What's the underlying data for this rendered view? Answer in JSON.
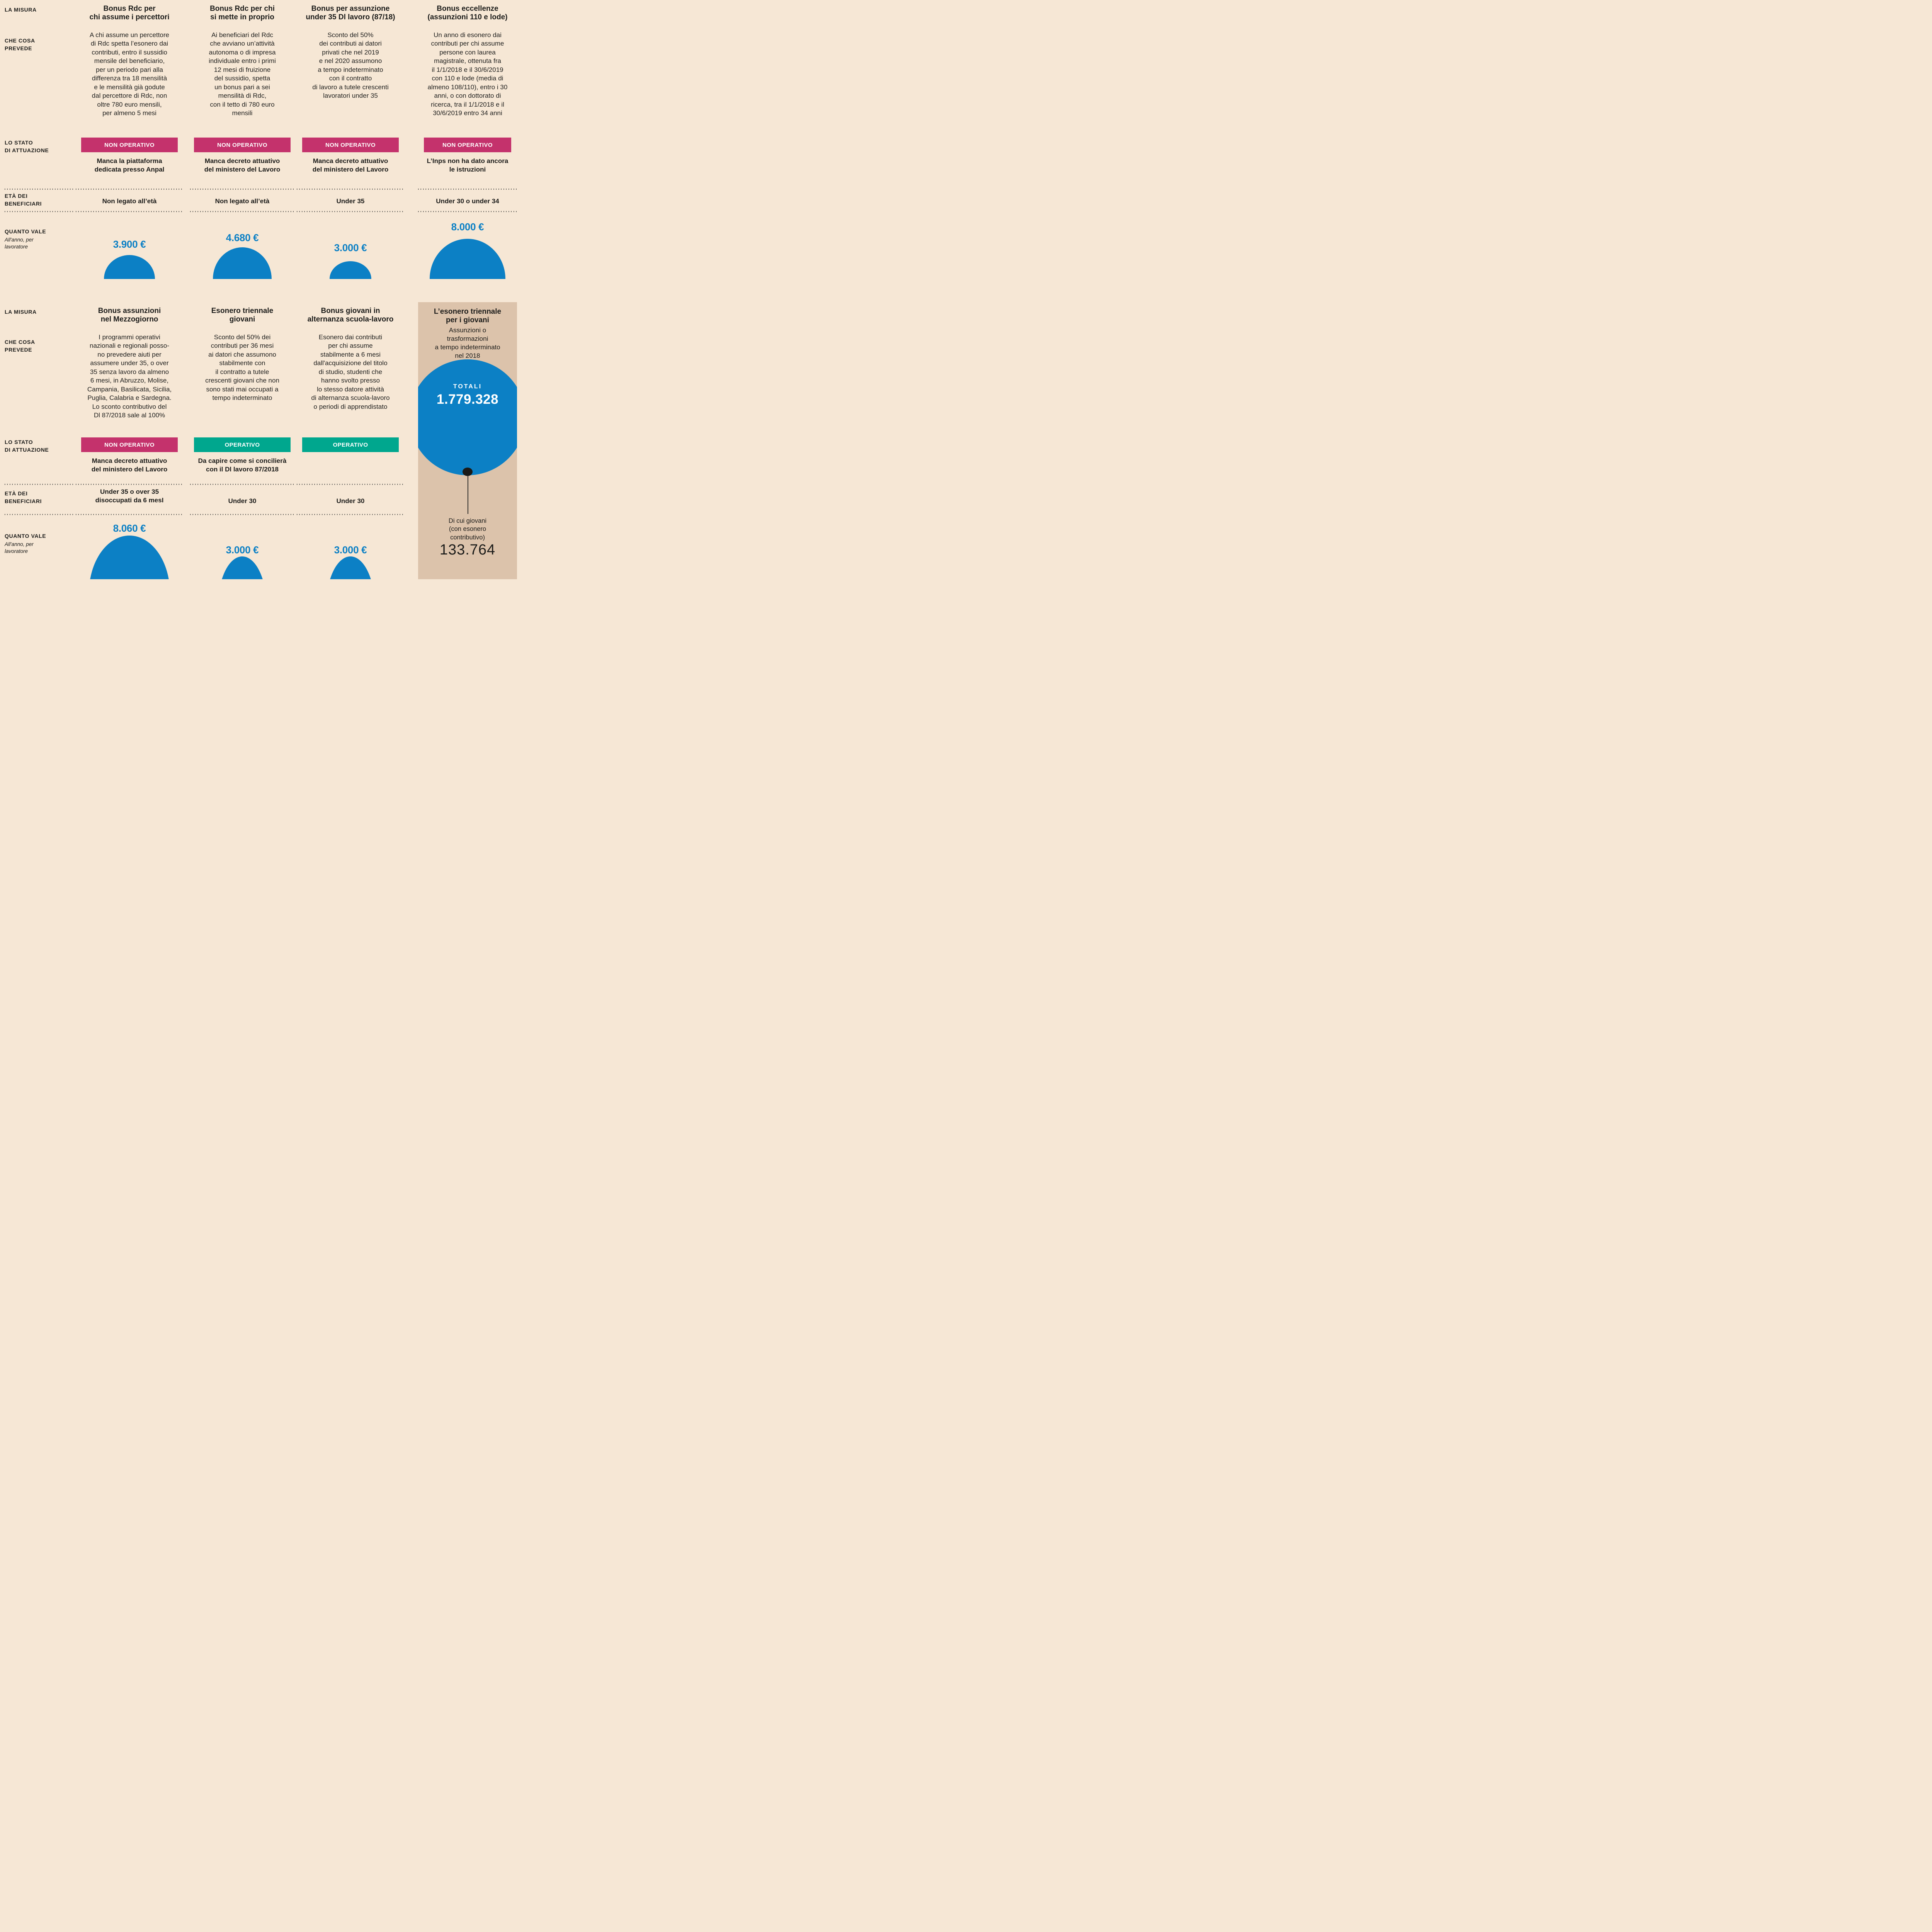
{
  "colors": {
    "background": "#f6e7d5",
    "panel": "#dcc3ab",
    "non_operative": "#c4326c",
    "operative": "#00a78e",
    "accent_blue": "#0c80c5",
    "text": "#1c1c1a"
  },
  "row_labels": {
    "measure": "LA MISURA",
    "what": "CHE COSA\nPREVEDE",
    "status": "LO STATO\nDI ATTUAZIONE",
    "age": "ETÀ DEI\nBENEFICIARI",
    "value": "QUANTO VALE",
    "value_note": "All'anno, per\nlavoratore"
  },
  "sections": [
    {
      "measures": [
        {
          "title": "Bonus Rdc per\nchi assume i percettori",
          "description": "A chi assume un percettore\ndi Rdc spetta l’esonero dai\ncontributi, entro il sussidio\nmensile del beneficiario,\nper un periodo pari alla\ndifferenza tra 18 mensilità\ne le  mensilità già godute\ndal percettore di Rdc, non\noltre 780 euro mensili,\nper almeno 5 mesi",
          "status": "NON OPERATIVO",
          "status_type": "non",
          "status_note": "Manca la piattaforma\ndedicata presso Anpal",
          "age": "Non legato all’età",
          "amount": "3.900 €",
          "amount_eur": 3900,
          "dome_w": 132,
          "dome_h": 62
        },
        {
          "title": "Bonus Rdc per chi\nsi mette  in proprio",
          "description": "Ai beneficiari del Rdc\nche avviano un’attività\nautonoma o di impresa\nindividuale entro i primi\n12 mesi di fruizione\ndel sussidio, spetta\nun bonus  pari a sei\nmensilità di Rdc,\ncon il tetto di 780 euro\nmensili",
          "status": "NON OPERATIVO",
          "status_type": "non",
          "status_note": "Manca decreto attuativo\ndel ministero del Lavoro",
          "age": "Non legato all’età",
          "amount": "4.680 €",
          "amount_eur": 4680,
          "dome_w": 152,
          "dome_h": 82
        },
        {
          "title": "Bonus per assunzione\nunder 35 Dl lavoro (87/18)",
          "description": "Sconto del 50%\ndei contributi ai datori\nprivati che nel 2019\ne nel 2020 assumono\na tempo indeterminato\ncon il contratto\ndi lavoro a tutele crescenti\nlavoratori under 35",
          "status": "NON OPERATIVO",
          "status_type": "non",
          "status_note": "Manca decreto attuativo\ndel ministero del Lavoro",
          "age": "Under 35",
          "amount": "3.000 €",
          "amount_eur": 3000,
          "dome_w": 108,
          "dome_h": 46
        },
        {
          "title": "Bonus eccellenze\n(assunzioni 110 e lode)",
          "description": "Un anno di esonero dai\ncontributi per chi assume\npersone con laurea\nmagistrale, ottenuta fra\nil 1/1/2018 e il 30/6/2019\ncon 110 e lode (media di\nalmeno 108/110), entro i 30\nanni, o con dottorato di\nricerca, tra il 1/1/2018 e il\n30/6/2019 entro 34 anni",
          "status": "NON OPERATIVO",
          "status_type": "non",
          "status_note": "L’Inps non ha dato ancora\nle istruzioni",
          "age": "Under 30 o under 34",
          "amount": "8.000 €",
          "amount_eur": 8000,
          "dome_w": 196,
          "dome_h": 104
        }
      ]
    },
    {
      "measures": [
        {
          "title": "Bonus assunzioni\nnel Mezzogiorno",
          "description": "I programmi operativi\nnazionali e regionali posso-\nno prevedere aiuti per\nassumere under 35, o over\n35 senza lavoro da almeno\n6 mesi, in Abruzzo, Molise,\nCampania, Basilicata, Sicilia,\nPuglia, Calabria e Sardegna.\nLo sconto contributivo del\nDl  87/2018 sale al 100%",
          "status": "NON OPERATIVO",
          "status_type": "non",
          "status_note": "Manca decreto attuativo\ndel ministero del Lavoro",
          "age": "Under 35 o over 35\ndisoccupati da 6 mesI",
          "amount": "8.060 €",
          "amount_eur": 8060,
          "dome_w": 210,
          "dome_h": 150
        },
        {
          "title": "Esonero triennale\ngiovani",
          "description": "Sconto del 50% dei\ncontributi per 36 mesi\nai datori che assumono\nstabilmente con\nil contratto a tutele\ncrescenti giovani che non\nsono stati mai occupati a\ntempo indeterminato",
          "status": "OPERATIVO",
          "status_type": "op",
          "status_note": "Da capire come si concilierà\ncon il Dl lavoro 87/2018",
          "age": "Under 30",
          "amount": "3.000 €",
          "amount_eur": 3000,
          "dome_w": 126,
          "dome_h": 130
        },
        {
          "title": "Bonus giovani in\nalternanza scuola-lavoro",
          "description": "Esonero dai contributi\nper chi assume\nstabilmente a 6 mesi\ndall'acquisizione del titolo\ndi studio, studenti che\nhanno svolto presso\nlo stesso datore attività\ndi alternanza scuola-lavoro\no periodi di apprendistato",
          "status": "OPERATIVO",
          "status_type": "op",
          "status_note": "",
          "age": "Under 30",
          "amount": "3.000 €",
          "amount_eur": 3000,
          "dome_w": 126,
          "dome_h": 130
        }
      ]
    }
  ],
  "highlight_panel": {
    "title": "L’esonero triennale\nper i giovani",
    "subtitle": "Assunzioni o\ntrasformazioni\na tempo indeterminato\nnel 2018",
    "total_label": "TOTALI",
    "total_value": "1.779.328",
    "callout_label": "Di cui giovani\n(con esonero\ncontributivo)",
    "callout_value": "133.764"
  },
  "chart_data": {
    "type": "bar",
    "title": "",
    "categories": [
      "Bonus Rdc per chi assume i percettori",
      "Bonus Rdc per chi si mette in proprio",
      "Bonus per assunzione under 35 Dl lavoro (87/18)",
      "Bonus eccellenze (assunzioni 110 e lode)",
      "Bonus assunzioni nel Mezzogiorno",
      "Esonero triennale giovani",
      "Bonus giovani in alternanza scuola-lavoro"
    ],
    "values": [
      3900,
      4680,
      3000,
      8000,
      8060,
      3000,
      3000
    ],
    "ylabel": "€ all'anno, per lavoratore",
    "statuses": [
      "NON OPERATIVO",
      "NON OPERATIVO",
      "NON OPERATIVO",
      "NON OPERATIVO",
      "NON OPERATIVO",
      "OPERATIVO",
      "OPERATIVO"
    ],
    "annotations": [
      {
        "label": "TOTALI — assunzioni o trasformazioni a tempo indeterminato nel 2018",
        "value": 1779328
      },
      {
        "label": "Di cui giovani (con esonero contributivo)",
        "value": 133764
      }
    ]
  }
}
